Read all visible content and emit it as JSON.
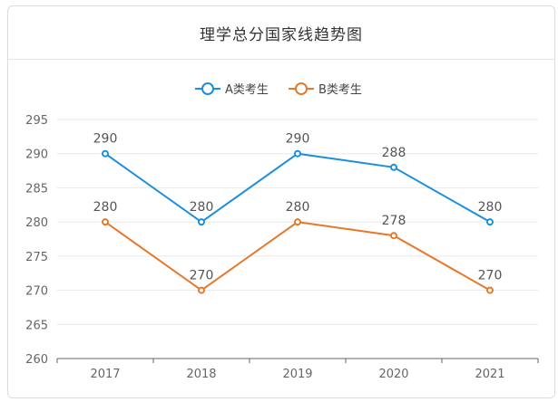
{
  "header": {
    "title": "理学总分国家线趋势图"
  },
  "colors": {
    "series_a": "#1c8ede",
    "series_b": "#e5782a",
    "grid": "#e8e8e8",
    "axis": "#666666"
  },
  "chart_data": {
    "type": "line",
    "title": "理学总分国家线趋势图",
    "categories": [
      "2017",
      "2018",
      "2019",
      "2020",
      "2021"
    ],
    "series": [
      {
        "name": "A类考生",
        "values": [
          290,
          280,
          290,
          288,
          280
        ]
      },
      {
        "name": "B类考生",
        "values": [
          280,
          270,
          280,
          278,
          270
        ]
      }
    ],
    "ylim": [
      260,
      295
    ],
    "yticks": [
      260,
      265,
      270,
      275,
      280,
      285,
      290,
      295
    ],
    "grid": true,
    "legend": "top-center",
    "xlabel": "",
    "ylabel": ""
  }
}
